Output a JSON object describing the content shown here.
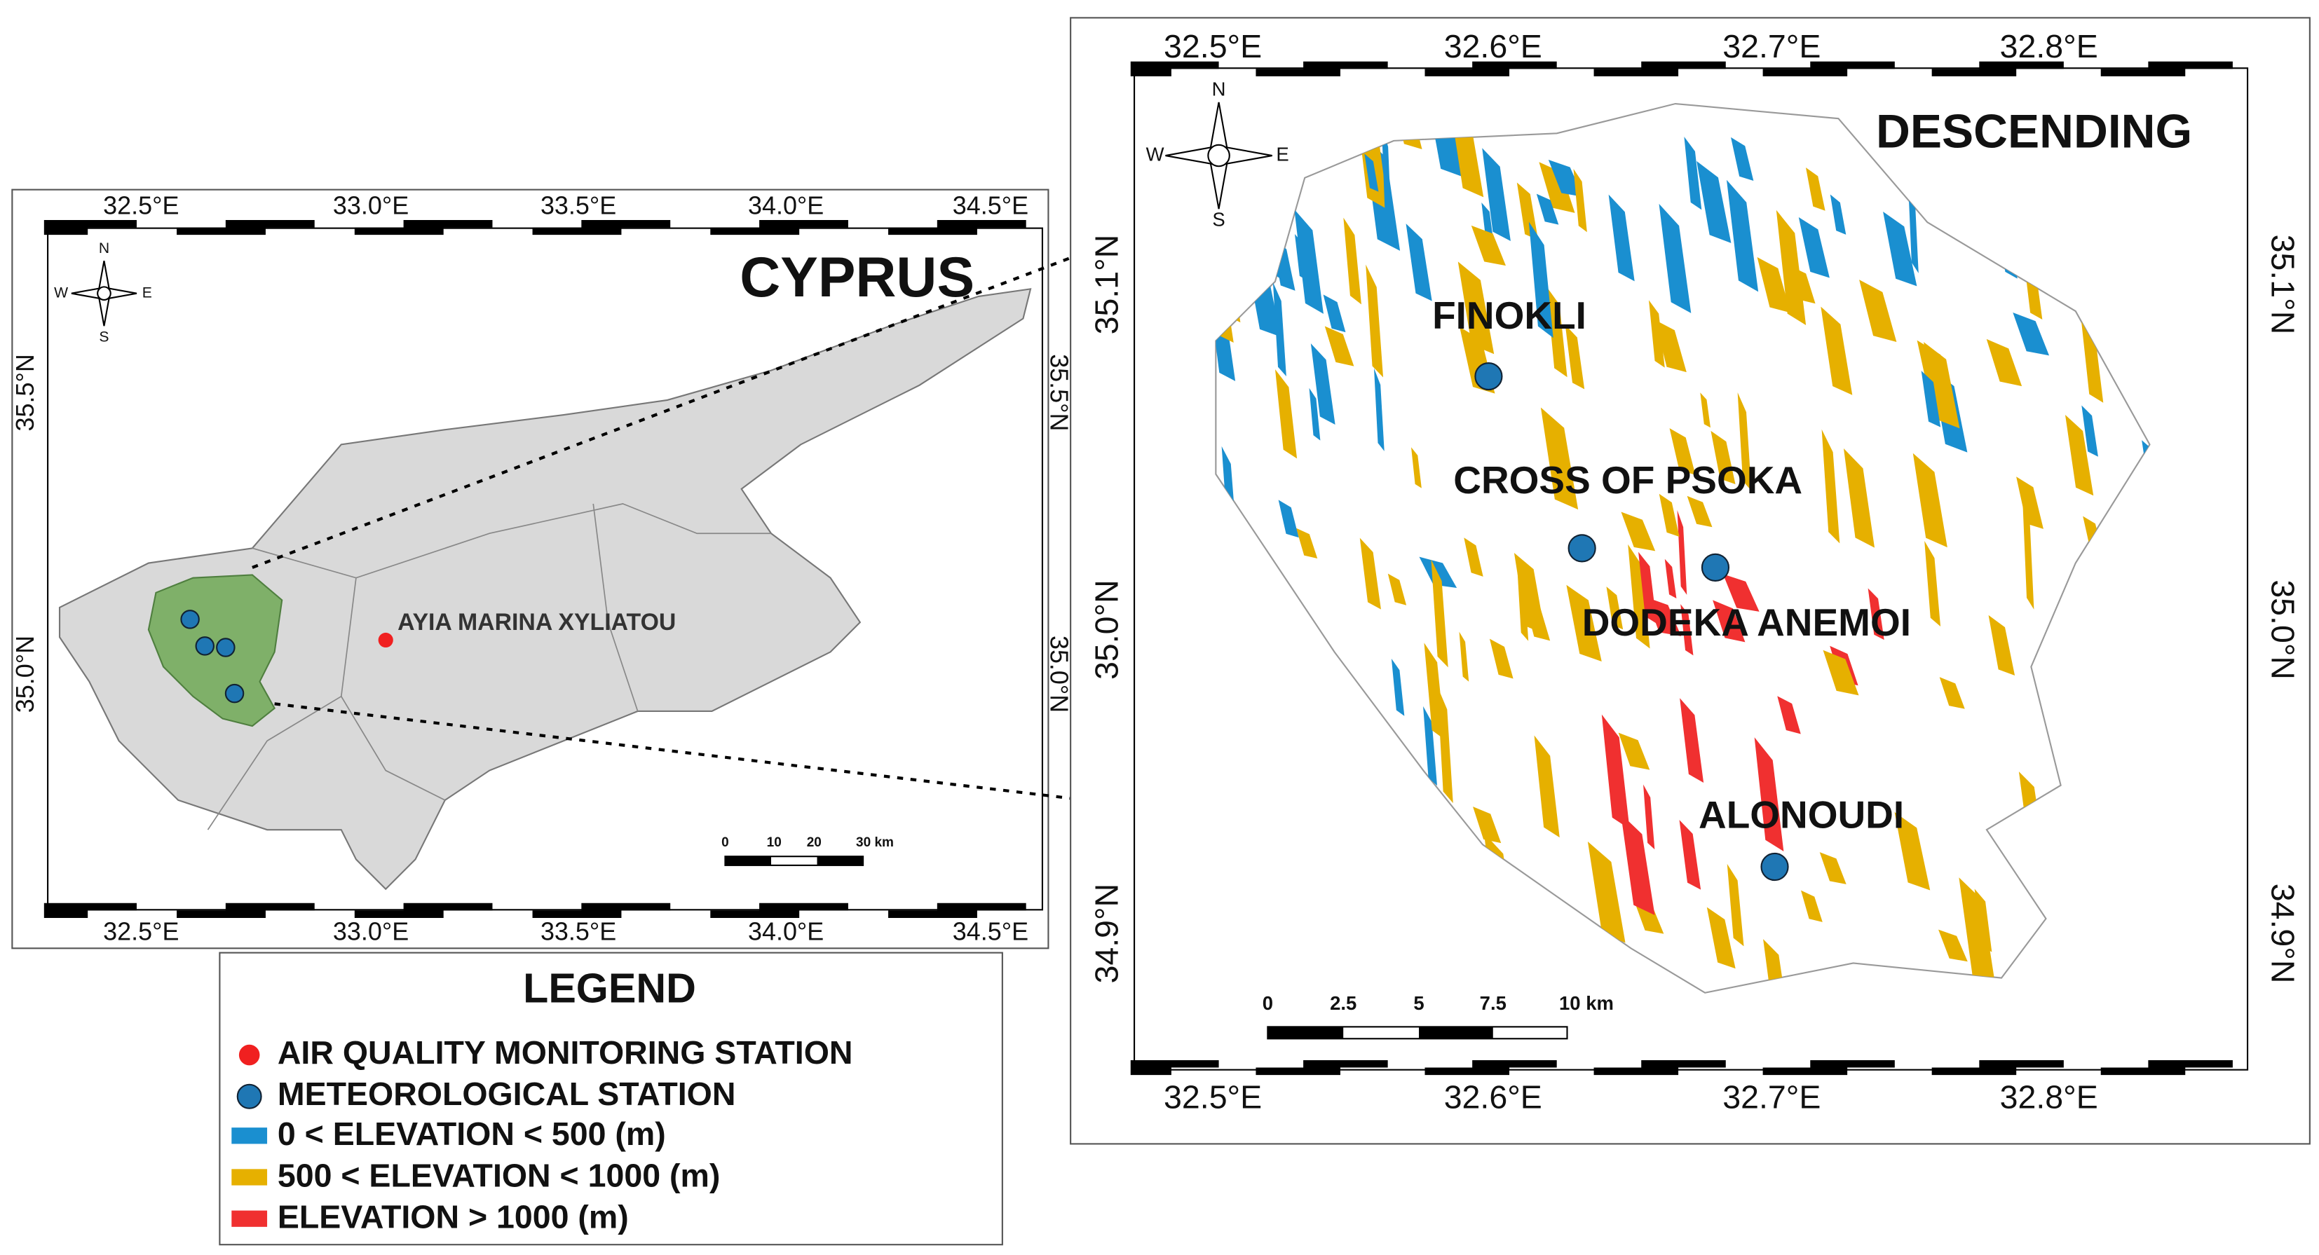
{
  "left_map": {
    "title": "CYPRUS",
    "x_ticks": [
      "32.5°E",
      "33.0°E",
      "33.5°E",
      "34.0°E",
      "34.5°E"
    ],
    "y_ticks": [
      "35.5°N",
      "35.0°N"
    ],
    "compass": [
      "N",
      "S",
      "W",
      "E"
    ],
    "station_label": "AYIA MARINA XYLIATOU",
    "scale_bar": [
      "0",
      "10",
      "20",
      "30 km"
    ]
  },
  "right_map": {
    "title": "DESCENDING",
    "x_ticks": [
      "32.5°E",
      "32.6°E",
      "32.7°E",
      "32.8°E"
    ],
    "y_ticks": [
      "35.1°N",
      "35.0°N",
      "34.9°N"
    ],
    "compass": [
      "N",
      "S",
      "W",
      "E"
    ],
    "stations": [
      "FINOKLI",
      "CROSS OF PSOKA",
      "DODEKA ANEMOI",
      "ALONOUDI"
    ],
    "scale_bar": [
      "0",
      "2.5",
      "5",
      "7.5",
      "10 km"
    ]
  },
  "legend": {
    "title": "LEGEND",
    "items": [
      "AIR QUALITY MONITORING STATION",
      "METEOROLOGICAL STATION",
      "0 < ELEVATION < 500 (m)",
      "500 < ELEVATION < 1000 (m)",
      "ELEVATION > 1000 (m)"
    ]
  }
}
